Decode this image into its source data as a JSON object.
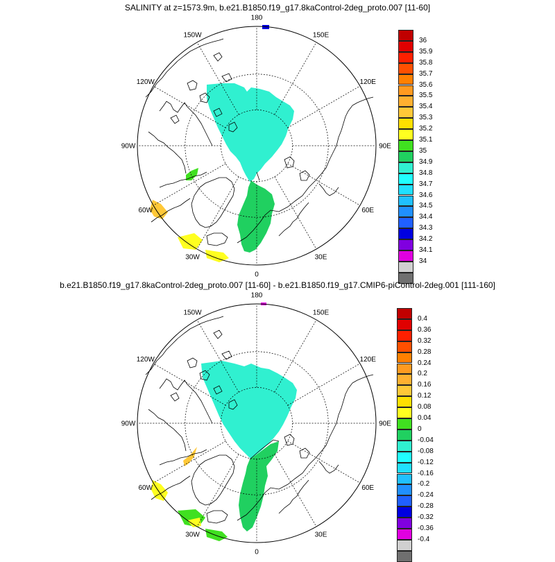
{
  "panels": [
    {
      "title": "SALINITY at z=1573.9m, b.e21.B1850.f19_g17.8kaControl-2deg_proto.007 [11-60]",
      "longitude_labels": {
        "l180": "180",
        "l150E": "150E",
        "l120E": "120E",
        "l90E": "90E",
        "l60E": "60E",
        "l30E": "30E",
        "l0": "0",
        "l30W": "30W",
        "l60W": "60W",
        "l90W": "90W",
        "l120W": "120W",
        "l150W": "150W"
      },
      "colorbar": {
        "colors": [
          "#C00000",
          "#E00000",
          "#FF2000",
          "#FF5000",
          "#FF8000",
          "#FF9A20",
          "#FFB030",
          "#FFC838",
          "#FFE000",
          "#FFFF20",
          "#40E020",
          "#20D060",
          "#30F0D0",
          "#20FFFF",
          "#20E0FF",
          "#20C0FF",
          "#2090FF",
          "#2060FF",
          "#0000E0",
          "#8000E0",
          "#E000E0",
          "#D0D0D0",
          "#707070"
        ],
        "labels": [
          "36",
          "35.9",
          "35.8",
          "35.7",
          "35.6",
          "35.5",
          "35.4",
          "35.3",
          "35.2",
          "35.1",
          "35",
          "34.9",
          "34.8",
          "34.7",
          "34.6",
          "34.5",
          "34.4",
          "34.3",
          "34.2",
          "34.1",
          "34"
        ]
      }
    },
    {
      "title": "b.e21.B1850.f19_g17.8kaControl-2deg_proto.007 [11-60] - b.e21.B1850.f19_g17.CMIP6-piControl-2deg.001 [111-160]",
      "longitude_labels": {
        "l180": "180",
        "l150E": "150E",
        "l120E": "120E",
        "l90E": "90E",
        "l60E": "60E",
        "l30E": "30E",
        "l0": "0",
        "l30W": "30W",
        "l60W": "60W",
        "l90W": "90W",
        "l120W": "120W",
        "l150W": "150W"
      },
      "colorbar": {
        "colors": [
          "#C00000",
          "#E00000",
          "#FF2000",
          "#FF5000",
          "#FF8000",
          "#FF9A20",
          "#FFB030",
          "#FFC838",
          "#FFE000",
          "#FFFF20",
          "#40E020",
          "#20D060",
          "#30F0D0",
          "#20FFFF",
          "#20E0FF",
          "#20C0FF",
          "#2090FF",
          "#2060FF",
          "#0000E0",
          "#8000E0",
          "#E000E0",
          "#D0D0D0",
          "#707070"
        ],
        "labels": [
          "0.4",
          "0.36",
          "0.32",
          "0.28",
          "0.24",
          "0.2",
          "0.16",
          "0.12",
          "0.08",
          "0.04",
          "0",
          "-0.04",
          "-0.08",
          "-0.12",
          "-0.16",
          "-0.2",
          "-0.24",
          "-0.28",
          "-0.32",
          "-0.36",
          "-0.4"
        ]
      }
    }
  ]
}
